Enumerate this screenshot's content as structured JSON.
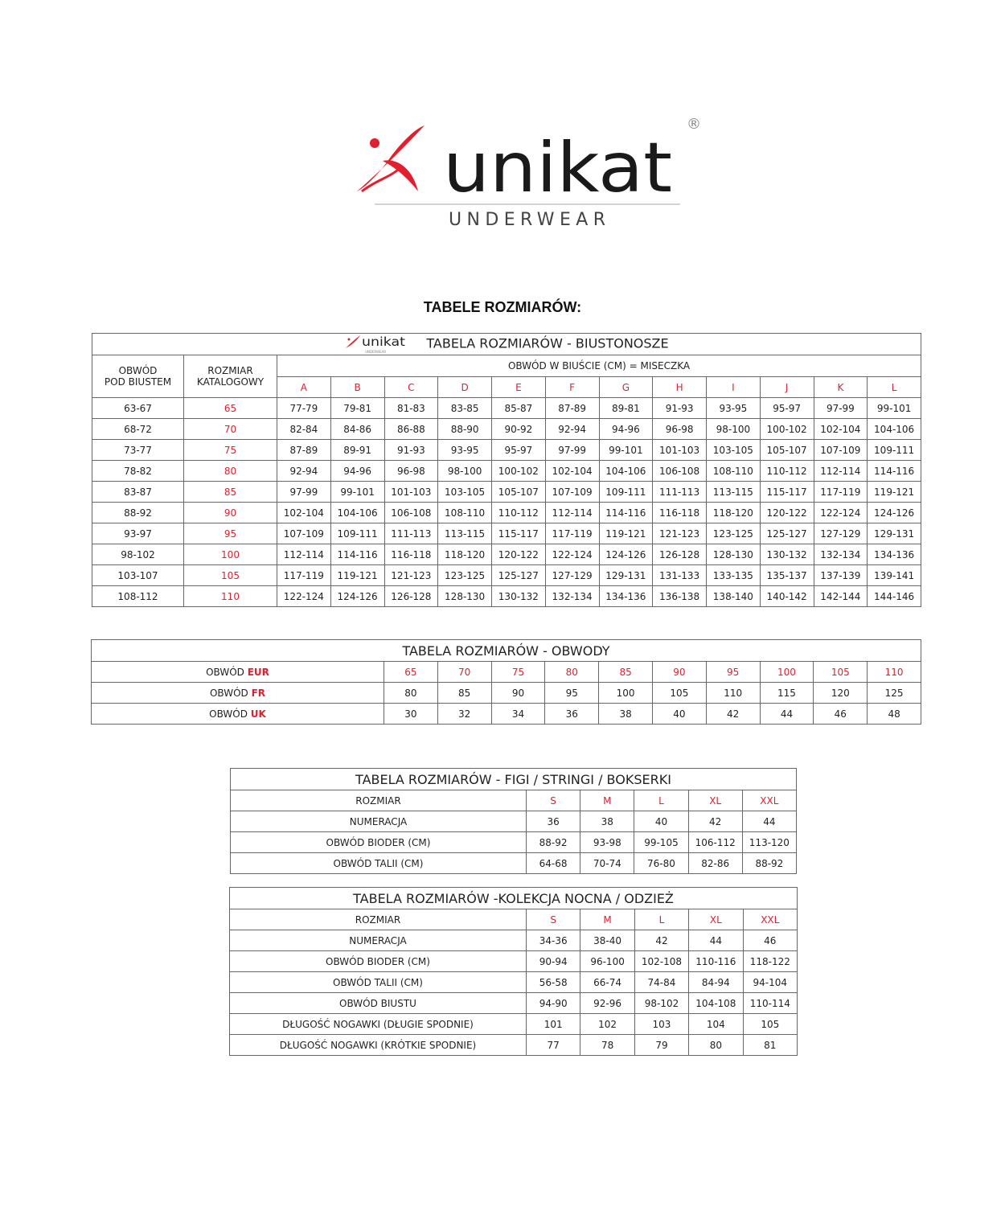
{
  "logo": {
    "brand": "unikat",
    "tagline": "UNDERWEAR",
    "registered": "®",
    "colors": {
      "red": "#e31e2d",
      "black": "#1a1a1a"
    }
  },
  "main_title": "TABELE ROZMIARÓW:",
  "bra_table": {
    "title": "TABELA ROZMIARÓW - BIUSTONOSZE",
    "col1_header_line1": "OBWÓD",
    "col1_header_line2": "POD BIUSTEM",
    "col2_header_line1": "ROZMIAR",
    "col2_header_line2": "KATALOGOWY",
    "cup_header": "OBWÓD W BIUŚCIE (CM) = MISECZKA",
    "cups": [
      "A",
      "B",
      "C",
      "D",
      "E",
      "F",
      "G",
      "H",
      "I",
      "J",
      "K",
      "L"
    ],
    "rows": [
      {
        "under": "63-67",
        "size": "65",
        "values": [
          "77-79",
          "79-81",
          "81-83",
          "83-85",
          "85-87",
          "87-89",
          "89-81",
          "91-93",
          "93-95",
          "95-97",
          "97-99",
          "99-101"
        ]
      },
      {
        "under": "68-72",
        "size": "70",
        "values": [
          "82-84",
          "84-86",
          "86-88",
          "88-90",
          "90-92",
          "92-94",
          "94-96",
          "96-98",
          "98-100",
          "100-102",
          "102-104",
          "104-106"
        ]
      },
      {
        "under": "73-77",
        "size": "75",
        "values": [
          "87-89",
          "89-91",
          "91-93",
          "93-95",
          "95-97",
          "97-99",
          "99-101",
          "101-103",
          "103-105",
          "105-107",
          "107-109",
          "109-111"
        ]
      },
      {
        "under": "78-82",
        "size": "80",
        "values": [
          "92-94",
          "94-96",
          "96-98",
          "98-100",
          "100-102",
          "102-104",
          "104-106",
          "106-108",
          "108-110",
          "110-112",
          "112-114",
          "114-116"
        ]
      },
      {
        "under": "83-87",
        "size": "85",
        "values": [
          "97-99",
          "99-101",
          "101-103",
          "103-105",
          "105-107",
          "107-109",
          "109-111",
          "111-113",
          "113-115",
          "115-117",
          "117-119",
          "119-121"
        ]
      },
      {
        "under": "88-92",
        "size": "90",
        "values": [
          "102-104",
          "104-106",
          "106-108",
          "108-110",
          "110-112",
          "112-114",
          "114-116",
          "116-118",
          "118-120",
          "120-122",
          "122-124",
          "124-126"
        ]
      },
      {
        "under": "93-97",
        "size": "95",
        "values": [
          "107-109",
          "109-111",
          "111-113",
          "113-115",
          "115-117",
          "117-119",
          "119-121",
          "121-123",
          "123-125",
          "125-127",
          "127-129",
          "129-131"
        ]
      },
      {
        "under": "98-102",
        "size": "100",
        "values": [
          "112-114",
          "114-116",
          "116-118",
          "118-120",
          "120-122",
          "122-124",
          "124-126",
          "126-128",
          "128-130",
          "130-132",
          "132-134",
          "134-136"
        ]
      },
      {
        "under": "103-107",
        "size": "105",
        "values": [
          "117-119",
          "119-121",
          "121-123",
          "123-125",
          "125-127",
          "127-129",
          "129-131",
          "131-133",
          "133-135",
          "135-137",
          "137-139",
          "139-141"
        ]
      },
      {
        "under": "108-112",
        "size": "110",
        "values": [
          "122-124",
          "124-126",
          "126-128",
          "128-130",
          "130-132",
          "132-134",
          "134-136",
          "136-138",
          "138-140",
          "140-142",
          "142-144",
          "144-146"
        ]
      }
    ]
  },
  "band_table": {
    "title": "TABELA ROZMIARÓW - OBWODY",
    "rows": [
      {
        "label": "OBWÓD ",
        "unit": "EUR",
        "red": true,
        "values": [
          "65",
          "70",
          "75",
          "80",
          "85",
          "90",
          "95",
          "100",
          "105",
          "110"
        ]
      },
      {
        "label": "OBWÓD ",
        "unit": "FR",
        "red": false,
        "values": [
          "80",
          "85",
          "90",
          "95",
          "100",
          "105",
          "110",
          "115",
          "120",
          "125"
        ]
      },
      {
        "label": "OBWÓD ",
        "unit": "UK",
        "red": false,
        "values": [
          "30",
          "32",
          "34",
          "36",
          "38",
          "40",
          "42",
          "44",
          "46",
          "48"
        ]
      }
    ]
  },
  "briefs_table": {
    "title": "TABELA ROZMIARÓW - FIGI / STRINGI / BOKSERKI",
    "size_label": "ROZMIAR",
    "sizes": [
      "S",
      "M",
      "L",
      "XL",
      "XXL"
    ],
    "rows": [
      {
        "label": "NUMERACJA",
        "values": [
          "36",
          "38",
          "40",
          "42",
          "44"
        ]
      },
      {
        "label": "OBWÓD BIODER (CM)",
        "values": [
          "88-92",
          "93-98",
          "99-105",
          "106-112",
          "113-120"
        ]
      },
      {
        "label": "OBWÓD TALII (CM)",
        "values": [
          "64-68",
          "70-74",
          "76-80",
          "82-86",
          "88-92"
        ]
      }
    ]
  },
  "night_table": {
    "title": "TABELA ROZMIARÓW -KOLEKCJA NOCNA / ODZIEŻ",
    "size_label": "ROZMIAR",
    "sizes": [
      "S",
      "M",
      "L",
      "XL",
      "XXL"
    ],
    "rows": [
      {
        "label": "NUMERACJA",
        "values": [
          "34-36",
          "38-40",
          "42",
          "44",
          "46"
        ]
      },
      {
        "label": "OBWÓD BIODER (CM)",
        "values": [
          "90-94",
          "96-100",
          "102-108",
          "110-116",
          "118-122"
        ]
      },
      {
        "label": "OBWÓD TALII (CM)",
        "values": [
          "56-58",
          "66-74",
          "74-84",
          "84-94",
          "94-104"
        ]
      },
      {
        "label": "OBWÓD BIUSTU",
        "values": [
          "94-90",
          "92-96",
          "98-102",
          "104-108",
          "110-114"
        ]
      },
      {
        "label": "DŁUGOŚĆ NOGAWKI (DŁUGIE SPODNIE)",
        "values": [
          "101",
          "102",
          "103",
          "104",
          "105"
        ]
      },
      {
        "label": "DŁUGOŚĆ NOGAWKI (KRÓTKIE SPODNIE)",
        "values": [
          "77",
          "78",
          "79",
          "80",
          "81"
        ]
      }
    ]
  }
}
